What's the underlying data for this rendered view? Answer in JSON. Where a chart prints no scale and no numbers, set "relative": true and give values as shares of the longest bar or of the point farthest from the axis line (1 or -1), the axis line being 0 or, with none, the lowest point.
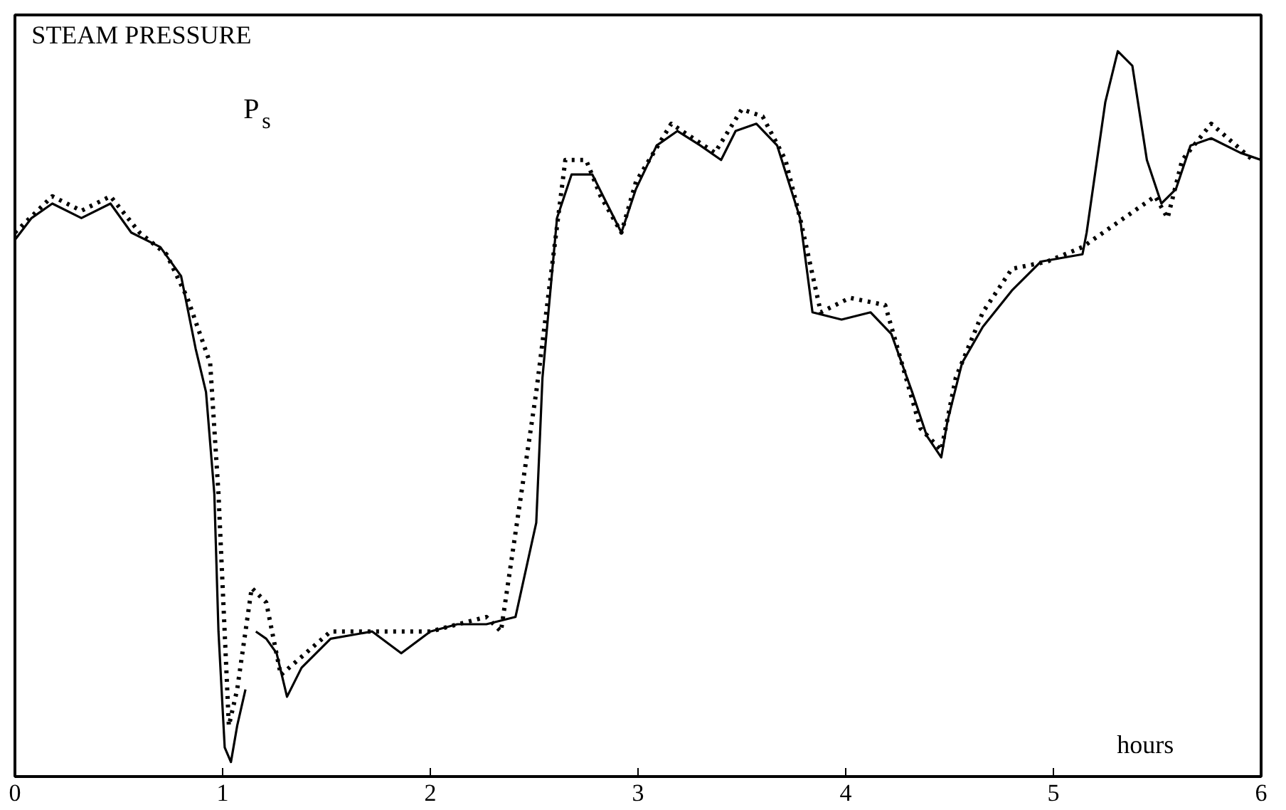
{
  "chart_data": {
    "type": "line",
    "title": "STEAM PRESSURE",
    "xlabel": "hours",
    "annotations": [
      "P$_{s}$"
    ],
    "relative": true,
    "xlim": [
      0,
      6
    ],
    "xticks": [
      0,
      1,
      2,
      3,
      4,
      5,
      6
    ],
    "grid": false,
    "series": [
      {
        "color": "#000000",
        "line_style": "solid",
        "x": [
          0,
          0.08,
          0.18,
          0.32,
          0.46,
          0.56,
          0.7,
          0.8,
          0.87,
          0.92,
          0.96,
          0.98,
          1.01,
          1.04,
          1.07,
          1.11,
          1.13,
          1.16,
          1.21,
          1.26,
          1.31,
          1.38,
          1.52,
          1.72,
          1.86,
          2.0,
          2.13,
          2.27,
          2.41,
          2.51,
          2.54,
          2.61,
          2.68,
          2.78,
          2.85,
          2.92,
          2.99,
          3.09,
          3.19,
          3.3,
          3.4,
          3.47,
          3.57,
          3.67,
          3.78,
          3.84,
          3.98,
          4.12,
          4.22,
          4.32,
          4.39,
          4.46,
          4.49,
          4.56,
          4.66,
          4.8,
          4.94,
          5.14,
          5.16,
          5.25,
          5.31,
          5.38,
          5.45,
          5.52,
          5.59,
          5.66,
          5.76,
          5.9,
          6.0
        ],
        "values": [
          0.74,
          0.77,
          0.79,
          0.77,
          0.79,
          0.75,
          0.73,
          0.69,
          0.59,
          0.53,
          0.39,
          0.2,
          0.04,
          0.02,
          0.07,
          0.12,
          null,
          0.2,
          0.19,
          0.17,
          0.11,
          0.15,
          0.19,
          0.2,
          0.17,
          0.2,
          0.21,
          0.21,
          0.22,
          0.35,
          0.55,
          0.77,
          0.83,
          0.83,
          0.79,
          0.75,
          0.81,
          0.87,
          0.89,
          0.87,
          0.85,
          0.89,
          0.9,
          0.87,
          0.77,
          0.64,
          0.63,
          0.64,
          0.61,
          0.53,
          0.47,
          0.44,
          0.49,
          0.57,
          0.62,
          0.67,
          0.71,
          0.72,
          0.75,
          0.93,
          1.0,
          0.98,
          0.85,
          0.79,
          0.81,
          0.87,
          0.88,
          0.86,
          0.85
        ]
      },
      {
        "color": "#000000",
        "line_style": "dotted",
        "x": [
          0,
          0.18,
          0.32,
          0.46,
          0.6,
          0.73,
          0.83,
          0.94,
          0.98,
          1.03,
          1.07,
          1.14,
          1.21,
          1.28,
          1.52,
          2.0,
          2.27,
          2.34,
          2.51,
          2.65,
          2.75,
          2.82,
          2.92,
          2.99,
          3.16,
          3.37,
          3.5,
          3.6,
          3.71,
          3.78,
          3.88,
          4.02,
          4.19,
          4.29,
          4.36,
          4.46,
          4.53,
          4.66,
          4.8,
          4.97,
          5.14,
          5.49,
          5.55,
          5.62,
          5.76,
          5.96
        ],
        "values": [
          0.75,
          0.8,
          0.78,
          0.8,
          0.75,
          0.72,
          0.66,
          0.57,
          0.39,
          0.07,
          0.12,
          0.26,
          0.24,
          0.14,
          0.2,
          0.2,
          0.22,
          0.2,
          0.53,
          0.85,
          0.85,
          0.8,
          0.75,
          0.82,
          0.9,
          0.86,
          0.92,
          0.91,
          0.85,
          0.77,
          0.64,
          0.66,
          0.65,
          0.55,
          0.48,
          0.45,
          0.55,
          0.64,
          0.7,
          0.71,
          0.73,
          0.8,
          0.77,
          0.85,
          0.9,
          0.85
        ]
      }
    ]
  }
}
